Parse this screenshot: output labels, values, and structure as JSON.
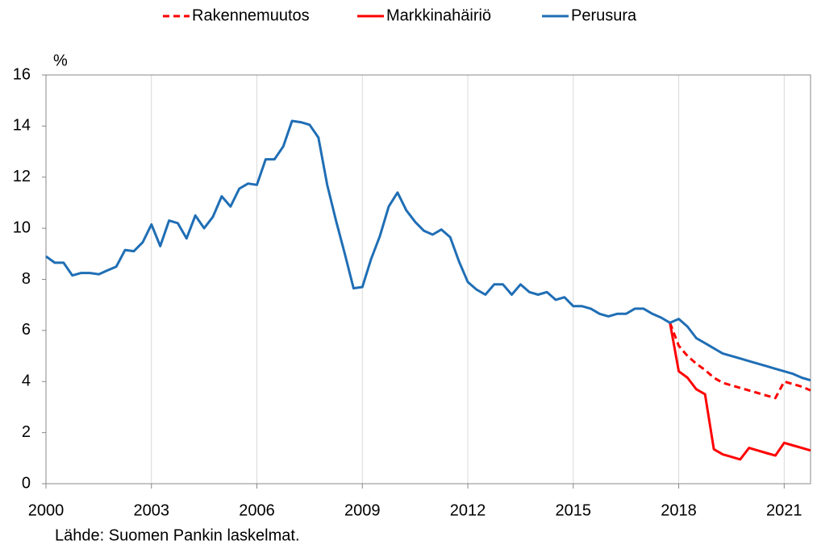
{
  "chart_data": {
    "type": "line",
    "unit_label": "%",
    "source": "Lähde: Suomen Pankin laskelmat.",
    "x": [
      2000,
      2000.25,
      2000.5,
      2000.75,
      2001,
      2001.25,
      2001.5,
      2001.75,
      2002,
      2002.25,
      2002.5,
      2002.75,
      2003,
      2003.25,
      2003.5,
      2003.75,
      2004,
      2004.25,
      2004.5,
      2004.75,
      2005,
      2005.25,
      2005.5,
      2005.75,
      2006,
      2006.25,
      2006.5,
      2006.75,
      2007,
      2007.25,
      2007.5,
      2007.75,
      2008,
      2008.25,
      2008.5,
      2008.75,
      2009,
      2009.25,
      2009.5,
      2009.75,
      2010,
      2010.25,
      2010.5,
      2010.75,
      2011,
      2011.25,
      2011.5,
      2011.75,
      2012,
      2012.25,
      2012.5,
      2012.75,
      2013,
      2013.25,
      2013.5,
      2013.75,
      2014,
      2014.25,
      2014.5,
      2014.75,
      2015,
      2015.25,
      2015.5,
      2015.75,
      2016,
      2016.25,
      2016.5,
      2016.75,
      2017,
      2017.25,
      2017.5,
      2017.75,
      2018,
      2018.25,
      2018.5,
      2018.75,
      2019,
      2019.25,
      2019.5,
      2019.75,
      2020,
      2020.25,
      2020.5,
      2020.75,
      2021,
      2021.25,
      2021.5,
      2021.75
    ],
    "series": [
      {
        "name": "Rakennemuutos",
        "color": "#ff0000",
        "line_style": "dashed",
        "values": [
          null,
          null,
          null,
          null,
          null,
          null,
          null,
          null,
          null,
          null,
          null,
          null,
          null,
          null,
          null,
          null,
          null,
          null,
          null,
          null,
          null,
          null,
          null,
          null,
          null,
          null,
          null,
          null,
          null,
          null,
          null,
          null,
          null,
          null,
          null,
          null,
          null,
          null,
          null,
          null,
          null,
          null,
          null,
          null,
          null,
          null,
          null,
          null,
          null,
          null,
          null,
          null,
          null,
          null,
          null,
          null,
          null,
          null,
          null,
          null,
          null,
          null,
          null,
          null,
          null,
          null,
          null,
          null,
          null,
          null,
          null,
          6.3,
          5.4,
          5.0,
          4.7,
          4.45,
          4.15,
          3.95,
          3.85,
          3.75,
          3.65,
          3.55,
          3.45,
          3.35,
          4.0,
          3.9,
          3.8,
          3.65
        ]
      },
      {
        "name": "Markkinahäiriö",
        "color": "#ff0000",
        "line_style": "solid",
        "values": [
          null,
          null,
          null,
          null,
          null,
          null,
          null,
          null,
          null,
          null,
          null,
          null,
          null,
          null,
          null,
          null,
          null,
          null,
          null,
          null,
          null,
          null,
          null,
          null,
          null,
          null,
          null,
          null,
          null,
          null,
          null,
          null,
          null,
          null,
          null,
          null,
          null,
          null,
          null,
          null,
          null,
          null,
          null,
          null,
          null,
          null,
          null,
          null,
          null,
          null,
          null,
          null,
          null,
          null,
          null,
          null,
          null,
          null,
          null,
          null,
          null,
          null,
          null,
          null,
          null,
          null,
          null,
          null,
          null,
          null,
          null,
          6.3,
          4.4,
          4.15,
          3.7,
          3.5,
          1.35,
          1.15,
          1.05,
          0.95,
          1.4,
          1.3,
          1.2,
          1.1,
          1.6,
          1.5,
          1.4,
          1.3
        ]
      },
      {
        "name": "Perusura",
        "color": "#1f6eb5",
        "line_style": "solid",
        "values": [
          8.9,
          8.65,
          8.65,
          8.15,
          8.25,
          8.25,
          8.2,
          8.35,
          8.5,
          9.15,
          9.1,
          9.45,
          10.15,
          9.3,
          10.3,
          10.2,
          9.6,
          10.5,
          10.0,
          10.45,
          11.25,
          10.85,
          11.55,
          11.75,
          11.7,
          12.7,
          12.7,
          13.2,
          14.2,
          14.15,
          14.05,
          13.55,
          11.7,
          10.3,
          9.0,
          7.65,
          7.7,
          8.8,
          9.7,
          10.85,
          11.4,
          10.7,
          10.25,
          9.9,
          9.75,
          9.95,
          9.65,
          8.7,
          7.9,
          7.6,
          7.4,
          7.8,
          7.8,
          7.4,
          7.8,
          7.5,
          7.4,
          7.5,
          7.2,
          7.3,
          6.95,
          6.95,
          6.85,
          6.65,
          6.55,
          6.65,
          6.65,
          6.85,
          6.85,
          6.65,
          6.5,
          6.3,
          6.45,
          6.15,
          5.7,
          5.5,
          5.3,
          5.1,
          5.0,
          4.9,
          4.8,
          4.7,
          4.6,
          4.5,
          4.4,
          4.3,
          4.15,
          4.05
        ]
      }
    ],
    "xlim": [
      2000,
      2021.75
    ],
    "xticks": [
      2000,
      2003,
      2006,
      2009,
      2012,
      2015,
      2018,
      2021
    ],
    "ylim": [
      0,
      16
    ],
    "yticks": [
      0,
      2,
      4,
      6,
      8,
      10,
      12,
      14,
      16
    ],
    "grid": "x",
    "legend": "top"
  }
}
